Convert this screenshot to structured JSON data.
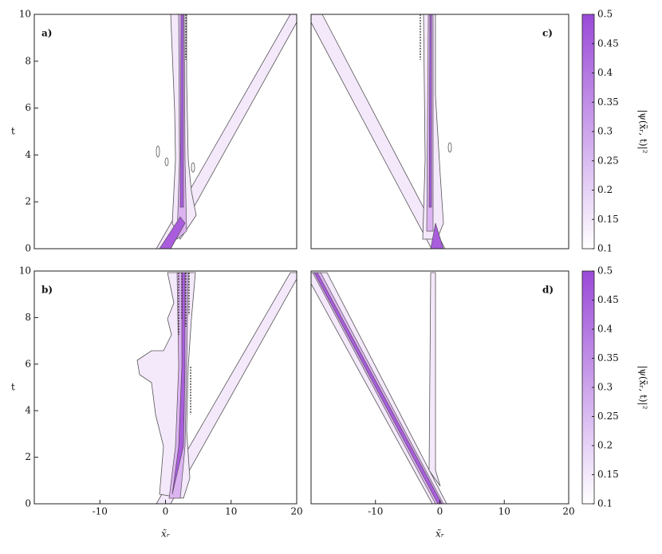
{
  "chart_data": [
    {
      "type": "contour",
      "panel_label": "a)",
      "y_label": "t",
      "xlim": [
        -20,
        20
      ],
      "ylim": [
        0,
        10
      ],
      "yticks": [
        0,
        2,
        4,
        6,
        8,
        10
      ]
    },
    {
      "type": "contour",
      "panel_label": "c)",
      "xlim": [
        -20,
        20
      ],
      "ylim": [
        0,
        10
      ]
    },
    {
      "type": "contour",
      "panel_label": "b)",
      "y_label": "t",
      "x_label": "x̃ᵣ",
      "xlim": [
        -20,
        20
      ],
      "ylim": [
        0,
        10
      ],
      "xticks": [
        -10,
        0,
        10,
        20
      ],
      "yticks": [
        0,
        2,
        4,
        6,
        8,
        10
      ]
    },
    {
      "type": "contour",
      "panel_label": "d)",
      "x_label": "x̃ᵣ",
      "xlim": [
        -20,
        20
      ],
      "ylim": [
        0,
        10
      ],
      "xticks": [
        -10,
        0,
        10,
        20
      ]
    },
    {
      "type": "colorbar",
      "label": "|ψ(x̃ᵣ, t)|²",
      "colors": [
        "#ffffff",
        "#9b4ad8"
      ],
      "ylim": [
        0.1,
        0.5
      ],
      "yticks": [
        0.1,
        0.15,
        0.2,
        0.25,
        0.3,
        0.35,
        0.4,
        0.45,
        0.5
      ]
    },
    {
      "type": "colorbar",
      "label": "|ψ(x̃ᵣ, t)|²",
      "colors": [
        "#ffffff",
        "#9b4ad8"
      ],
      "ylim": [
        0.1,
        0.5
      ],
      "yticks": [
        0.1,
        0.15,
        0.2,
        0.25,
        0.3,
        0.35,
        0.4,
        0.45,
        0.5
      ]
    }
  ]
}
